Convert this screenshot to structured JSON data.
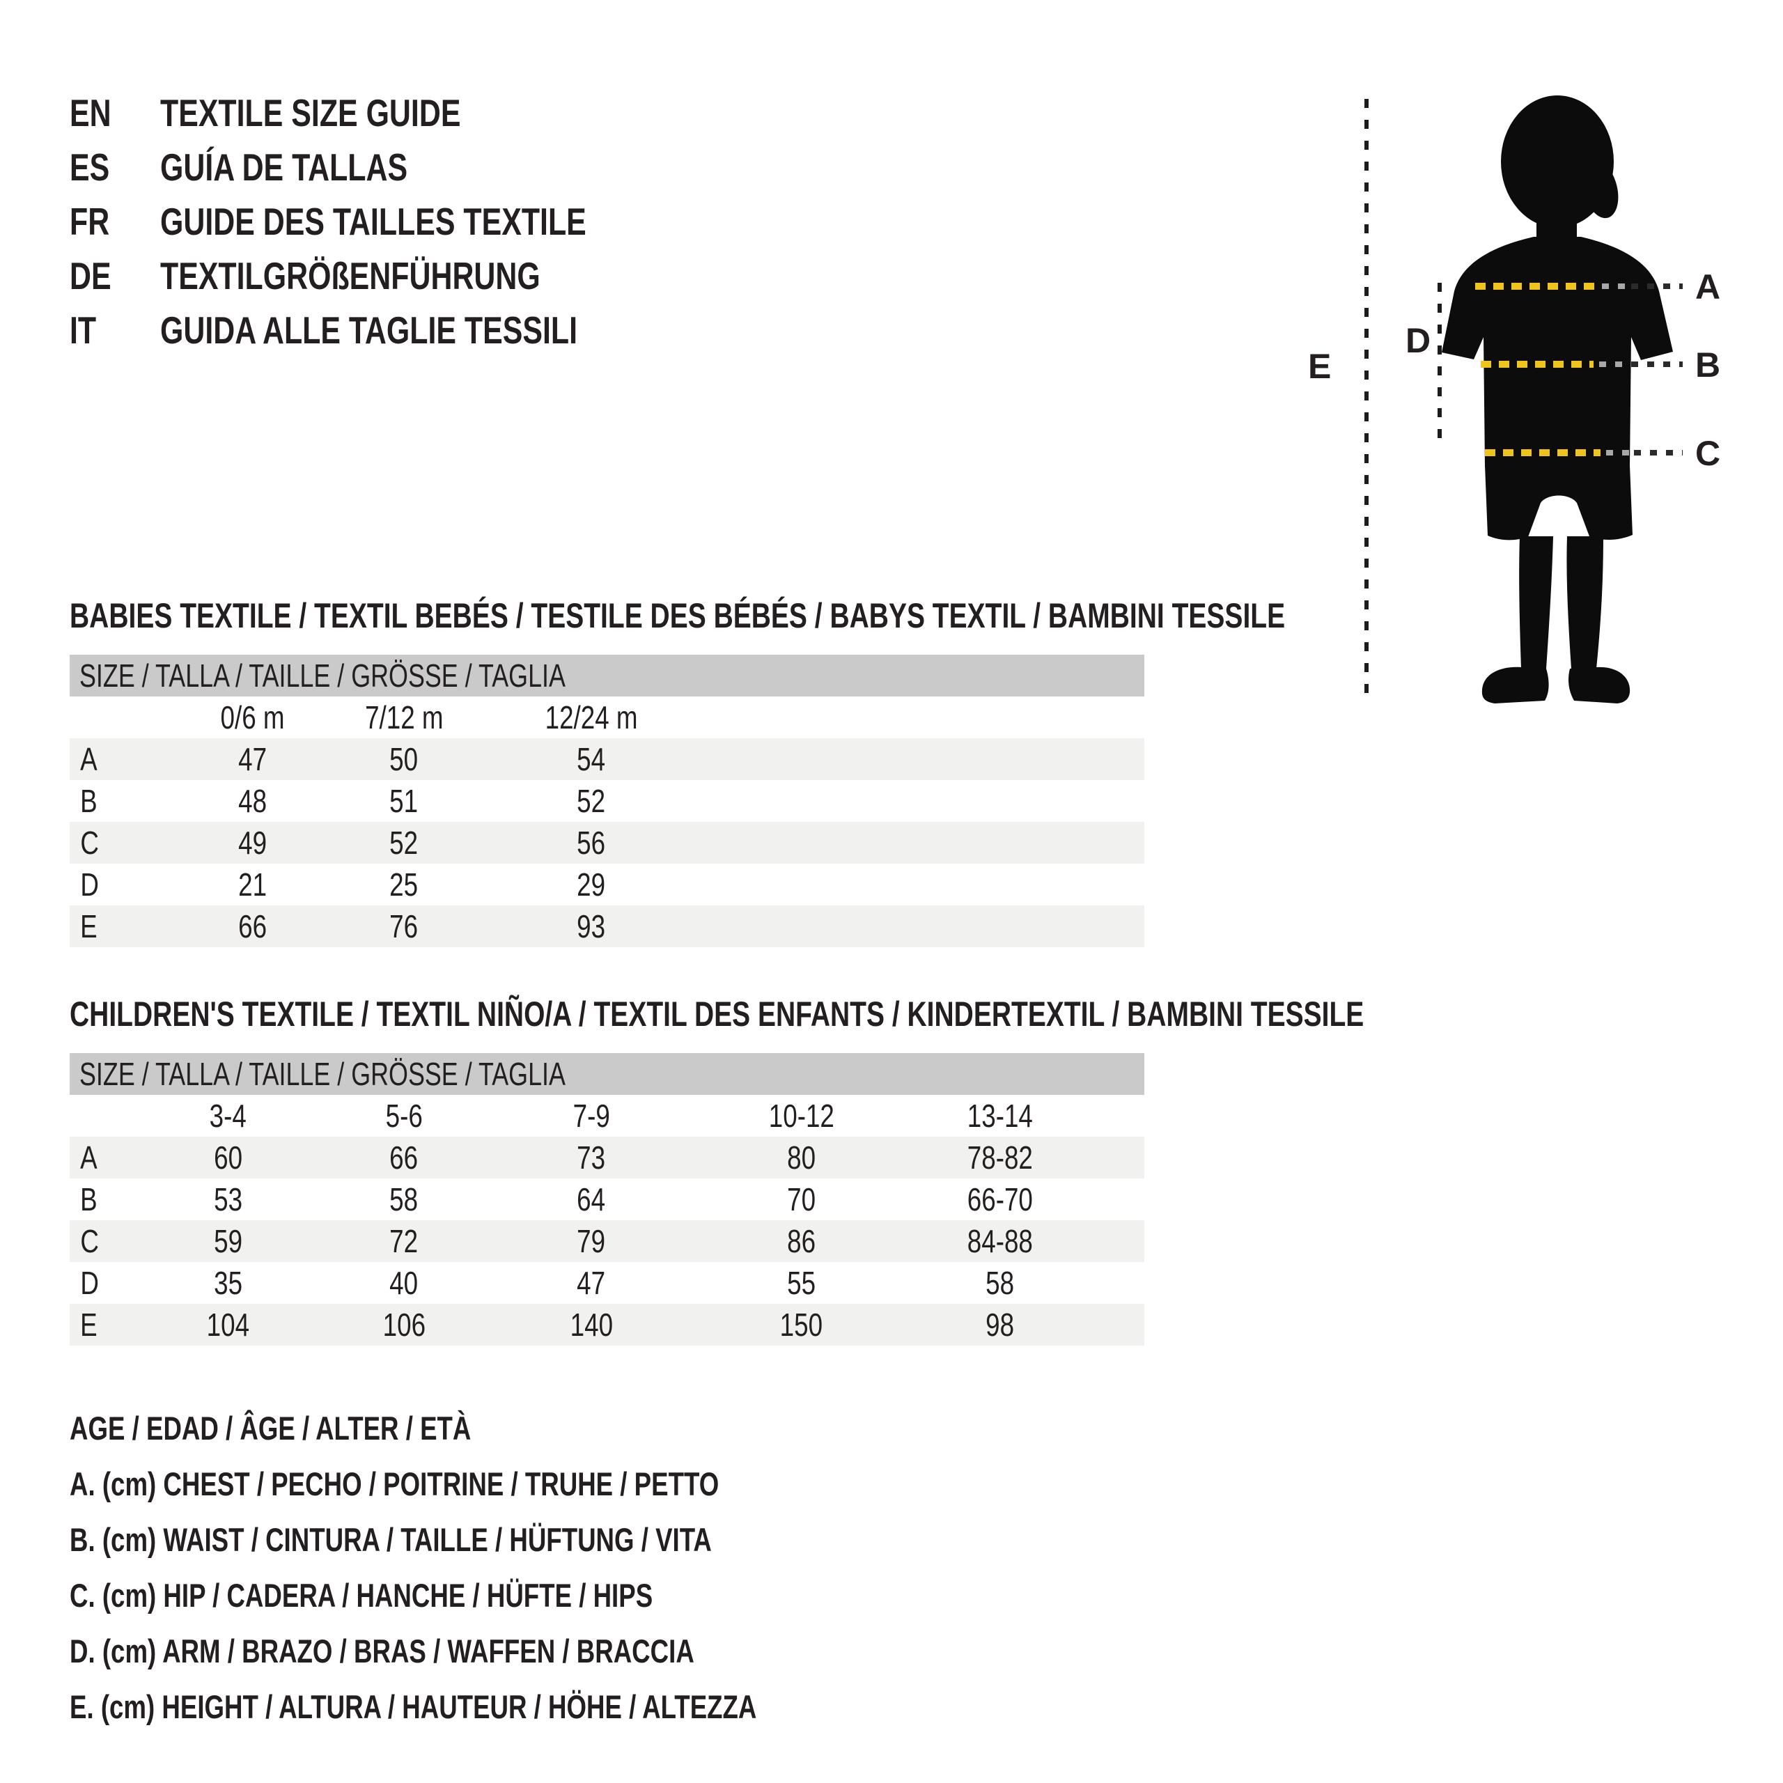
{
  "colors": {
    "text": "#231f20",
    "table_header_bar": "#cacaca",
    "row_stripe": "#f1f1ef",
    "silhouette": "#0c0c0c",
    "measure_yellow": "#f0c419",
    "measure_dark": "#2b2b2b",
    "measure_faded": "#a8a8a8"
  },
  "header": {
    "languages": [
      {
        "code": "EN",
        "title": "TEXTILE SIZE GUIDE"
      },
      {
        "code": "ES",
        "title": "GUÍA DE TALLAS"
      },
      {
        "code": "FR",
        "title": "GUIDE DES TAILLES TEXTILE"
      },
      {
        "code": "DE",
        "title": "TEXTILGRÖßENFÜHRUNG"
      },
      {
        "code": "IT",
        "title": "GUIDA ALLE TAGLIE TESSILI"
      }
    ]
  },
  "figure": {
    "labels": {
      "a": "A",
      "b": "B",
      "c": "C",
      "d": "D",
      "e": "E"
    }
  },
  "babies": {
    "heading": "BABIES TEXTILE / TEXTIL BEBÉS / TESTILE DES BÉBÉS / BABYS TEXTIL / BAMBINI TESSILE",
    "table": {
      "size_header": "SIZE / TALLA / TAILLE / GRÖSSE / TAGLIA",
      "columns": [
        "0/6 m",
        "7/12 m",
        "12/24 m"
      ],
      "rows": [
        {
          "label": "A",
          "values": [
            "47",
            "50",
            "54"
          ]
        },
        {
          "label": "B",
          "values": [
            "48",
            "51",
            "52"
          ]
        },
        {
          "label": "C",
          "values": [
            "49",
            "52",
            "56"
          ]
        },
        {
          "label": "D",
          "values": [
            "21",
            "25",
            "29"
          ]
        },
        {
          "label": "E",
          "values": [
            "66",
            "76",
            "93"
          ]
        }
      ]
    }
  },
  "children": {
    "heading": "CHILDREN'S TEXTILE / TEXTIL NIÑO/A / TEXTIL DES ENFANTS / KINDERTEXTIL / BAMBINI TESSILE",
    "table": {
      "size_header": "SIZE / TALLA / TAILLE / GRÖSSE / TAGLIA",
      "columns": [
        "3-4",
        "5-6",
        "7-9",
        "10-12",
        "13-14"
      ],
      "rows": [
        {
          "label": "A",
          "values": [
            "60",
            "66",
            "73",
            "80",
            "78-82"
          ]
        },
        {
          "label": "B",
          "values": [
            "53",
            "58",
            "64",
            "70",
            "66-70"
          ]
        },
        {
          "label": "C",
          "values": [
            "59",
            "72",
            "79",
            "86",
            "84-88"
          ]
        },
        {
          "label": "D",
          "values": [
            "35",
            "40",
            "47",
            "55",
            "58"
          ]
        },
        {
          "label": "E",
          "values": [
            "104",
            "106",
            "140",
            "150",
            "98"
          ]
        }
      ]
    }
  },
  "legend": {
    "lines": [
      "AGE / EDAD / ÂGE / ALTER / ETÀ",
      "A. (cm) CHEST / PECHO / POITRINE / TRUHE / PETTO",
      "B. (cm) WAIST / CINTURA / TAILLE / HÜFTUNG / VITA",
      "C. (cm) HIP / CADERA / HANCHE / HÜFTE / HIPS",
      "D. (cm) ARM / BRAZO / BRAS / WAFFEN / BRACCIA",
      "E. (cm) HEIGHT / ALTURA / HAUTEUR / HÖHE / ALTEZZA"
    ]
  }
}
